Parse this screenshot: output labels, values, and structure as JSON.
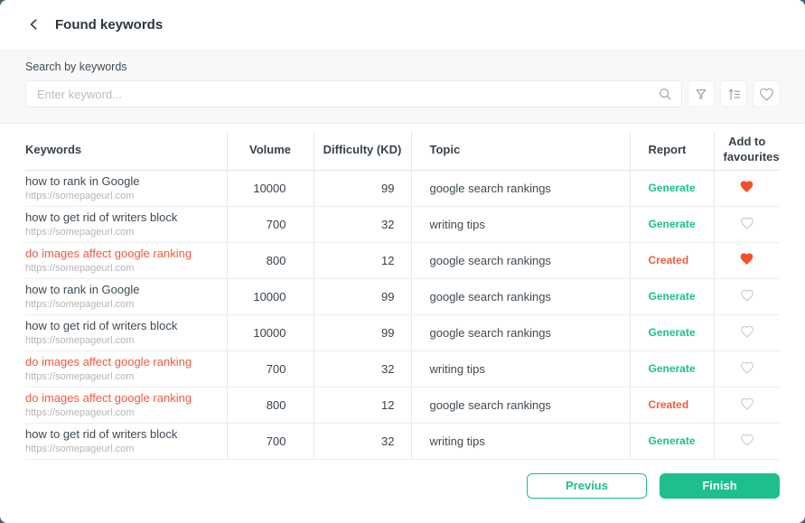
{
  "colors": {
    "accent_green": "#1dbf8f",
    "accent_orange": "#f25b3b",
    "heart_filled": "#f4502a",
    "heart_outline": "#cdcdcd",
    "search_band_bg": "#f8f8f8"
  },
  "header": {
    "back_icon": "chevron-left-icon",
    "title": "Found keywords"
  },
  "search": {
    "label": "Search by keywords",
    "placeholder": "Enter keyword...",
    "value": "",
    "input_icon": "search-icon",
    "buttons": [
      "filter-icon",
      "sort-icon",
      "heart-icon"
    ]
  },
  "table": {
    "columns": [
      "Keywords",
      "Volume",
      "Difficulty (KD)",
      "Topic",
      "Report",
      "Add to favourites"
    ],
    "rows": [
      {
        "keyword": "how to rank in Google",
        "url": "https://somepageurl.com",
        "volume": "10000",
        "difficulty": "99",
        "topic": "google search rankings",
        "report": "Generate",
        "report_state": "generate",
        "favourite": true,
        "highlighted": false
      },
      {
        "keyword": "how to get rid of writers block",
        "url": "https://somepageurl.com",
        "volume": "700",
        "difficulty": "32",
        "topic": "writing tips",
        "report": "Generate",
        "report_state": "generate",
        "favourite": false,
        "highlighted": false
      },
      {
        "keyword": "do images affect google ranking",
        "url": "https://somepageurl.com",
        "volume": "800",
        "difficulty": "12",
        "topic": "google search rankings",
        "report": "Created",
        "report_state": "created",
        "favourite": true,
        "highlighted": true
      },
      {
        "keyword": "how to rank in Google",
        "url": "https://somepageurl.com",
        "volume": "10000",
        "difficulty": "99",
        "topic": "google search rankings",
        "report": "Generate",
        "report_state": "generate",
        "favourite": false,
        "highlighted": false
      },
      {
        "keyword": "how to get rid of writers block",
        "url": "https://somepageurl.com",
        "volume": "10000",
        "difficulty": "99",
        "topic": "google search rankings",
        "report": "Generate",
        "report_state": "generate",
        "favourite": false,
        "highlighted": false
      },
      {
        "keyword": "do images affect google ranking",
        "url": "https://somepageurl.com",
        "volume": "700",
        "difficulty": "32",
        "topic": "writing tips",
        "report": "Generate",
        "report_state": "generate",
        "favourite": false,
        "highlighted": true
      },
      {
        "keyword": "do images affect google ranking",
        "url": "https://somepageurl.com",
        "volume": "800",
        "difficulty": "12",
        "topic": "google search rankings",
        "report": "Created",
        "report_state": "created",
        "favourite": false,
        "highlighted": true
      },
      {
        "keyword": "how to get rid of writers block",
        "url": "https://somepageurl.com",
        "volume": "700",
        "difficulty": "32",
        "topic": "writing tips",
        "report": "Generate",
        "report_state": "generate",
        "favourite": false,
        "highlighted": false
      }
    ]
  },
  "footer": {
    "previous_label": "Previus",
    "finish_label": "Finish"
  }
}
